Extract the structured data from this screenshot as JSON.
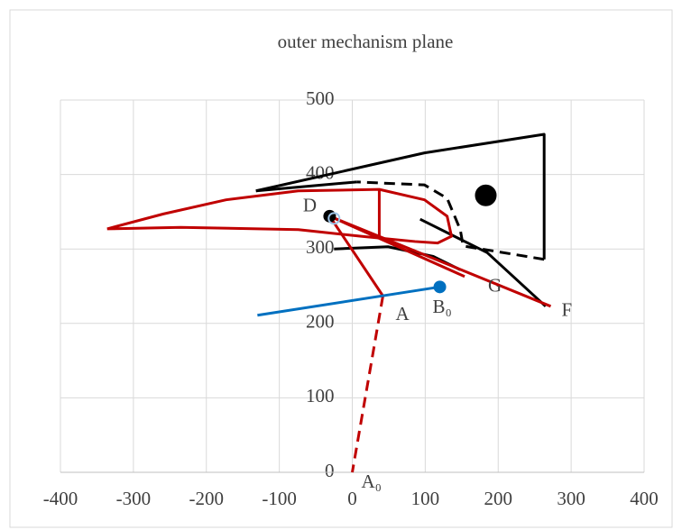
{
  "chart_data": {
    "type": "line",
    "title": "outer mechanism plane",
    "xlim": [
      -400,
      400
    ],
    "xticks": [
      -400,
      -300,
      -200,
      -100,
      0,
      100,
      200,
      300,
      400
    ],
    "ylim": [
      0,
      500
    ],
    "yticks": [
      0,
      100,
      200,
      300,
      400,
      500
    ],
    "grid": true,
    "series": [
      {
        "color": "#000000",
        "dash": false,
        "x": [
          -132,
          99,
          263,
          263
        ],
        "y": [
          378,
          429,
          454,
          286
        ]
      },
      {
        "color": "#000000",
        "dash": true,
        "x": [
          263,
          152,
          148,
          130,
          99,
          6
        ],
        "y": [
          286,
          304,
          326,
          368,
          386,
          390
        ]
      },
      {
        "color": "#000000",
        "dash": false,
        "x": [
          6,
          -132
        ],
        "y": [
          390,
          378
        ]
      },
      {
        "color": "#000000",
        "dash": false,
        "x": [
          -25,
          49,
          111,
          148
        ],
        "y": [
          300,
          303,
          290,
          272
        ]
      },
      {
        "color": "#000000",
        "dash": false,
        "x": [
          93,
          185,
          265
        ],
        "y": [
          340,
          295,
          223
        ]
      },
      {
        "color": "#c00000",
        "dash": false,
        "x": [
          -336,
          -259,
          -173,
          -74,
          37,
          99,
          130,
          136,
          117,
          86,
          12,
          -74,
          -235,
          -336
        ],
        "y": [
          327,
          347,
          366,
          378,
          380,
          366,
          344,
          317,
          308,
          310,
          317,
          326,
          329,
          327
        ]
      },
      {
        "color": "#c00000",
        "dash": false,
        "x": [
          -31,
          272
        ],
        "y": [
          344,
          223
        ]
      },
      {
        "color": "#c00000",
        "dash": false,
        "x": [
          -31,
          154
        ],
        "y": [
          344,
          263
        ]
      },
      {
        "color": "#c00000",
        "dash": false,
        "x": [
          37,
          37
        ],
        "y": [
          380,
          315
        ]
      },
      {
        "color": "#c00000",
        "dash": false,
        "x": [
          -31,
          42
        ],
        "y": [
          344,
          237
        ]
      },
      {
        "color": "#c00000",
        "dash": true,
        "x": [
          42,
          0
        ],
        "y": [
          237,
          0
        ]
      },
      {
        "color": "#0070c0",
        "dash": false,
        "x": [
          -130,
          120
        ],
        "y": [
          211,
          249
        ]
      },
      {
        "color": "#000000",
        "marker": "large",
        "x": [
          183
        ],
        "y": [
          372
        ]
      },
      {
        "color": "#000000",
        "marker": "small",
        "x": [
          -31
        ],
        "y": [
          344
        ]
      },
      {
        "color": "#0070c0",
        "marker": "small",
        "x": [
          120
        ],
        "y": [
          249
        ]
      },
      {
        "color": "#9dc3e6",
        "marker": "open",
        "x": [
          -25
        ],
        "y": [
          341
        ]
      }
    ],
    "points": [
      {
        "label": "D",
        "x": -31,
        "y": 344
      },
      {
        "label": "A",
        "x": 42,
        "y": 237
      },
      {
        "label": "A₀",
        "x": 0,
        "y": 0
      },
      {
        "label": "B₀",
        "x": 120,
        "y": 249
      },
      {
        "label": "G",
        "x": 154,
        "y": 263
      },
      {
        "label": "F",
        "x": 272,
        "y": 223
      }
    ]
  }
}
